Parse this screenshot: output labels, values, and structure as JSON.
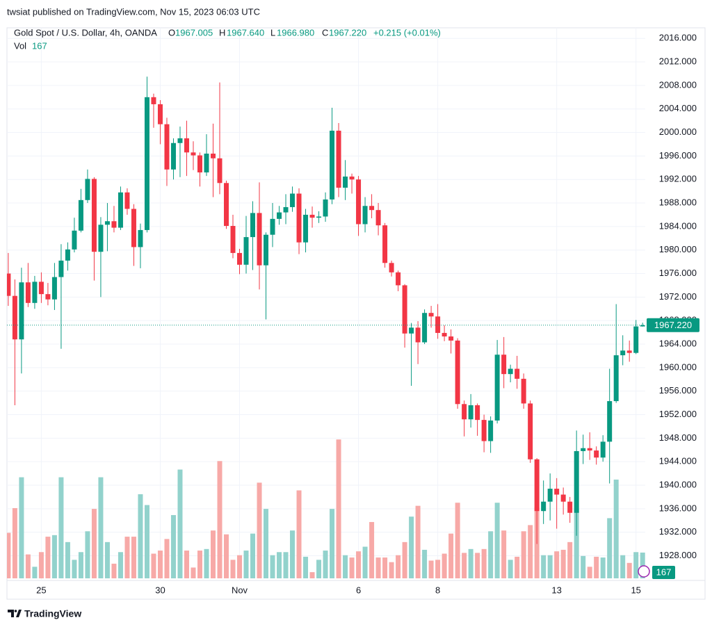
{
  "header": {
    "published": "twsiat published on TradingView.com, Nov 15, 2023 06:03 UTC"
  },
  "chart_data": {
    "type": "candlestick",
    "legend": {
      "open_label": "O",
      "open": "1967.005",
      "high_label": "H",
      "high": "1967.640",
      "low_label": "L",
      "low": "1966.980",
      "close_label": "C",
      "close": "1967.220",
      "change": "+0.215 (+0.01%)"
    },
    "up_color": "#089981",
    "down_color": "#f23645",
    "volume_up_color": "#92d2cc",
    "volume_down_color": "#f7a9a7",
    "series": [
      {
        "name": "Gold Spot / U.S. Dollar, 4h, OANDA",
        "open": [
          1976,
          1972.2,
          1964.8,
          1974.5,
          1971,
          1974.6,
          1972.5,
          1971.6,
          1975.4,
          1978.2,
          1980.1,
          1983.3,
          1988.5,
          1992.1,
          1979.7,
          1984.3,
          1984.9,
          1983.8,
          1989.8,
          1987,
          1980.5,
          1983.4,
          2006,
          2004.8,
          2001.4,
          1993.7,
          1998.2,
          1999,
          1996.6,
          1996.1,
          1993.2,
          1996.4,
          1995.6,
          1991.4,
          1984.1,
          1979.5,
          1977.5,
          1982.2,
          1986.3,
          1977.4,
          1982.6,
          1985.3,
          1986.4,
          1987.3,
          1989.6,
          1981.3,
          1986,
          1985.5,
          1985.7,
          1988.6,
          2000.3,
          1990.6,
          1992.5,
          1992,
          1984.4,
          1987.5,
          1986.8,
          1984.2,
          1977.8,
          1976.2,
          1974,
          1965.8,
          1966.8,
          1964.3,
          1969.3,
          1968.7,
          1965.9,
          1965.3,
          1964.6,
          1953.8,
          1951.2,
          1953.6,
          1951.1,
          1947.5,
          1951,
          1962.2,
          1958.9,
          1959.8,
          1958.1,
          1953.9,
          1944.4,
          1935.6,
          1937.2,
          1939.4,
          1938.4,
          1937.2,
          1935.3,
          1945.8,
          1946.3,
          1945.9,
          1944.7,
          1947.4,
          1954.3,
          1962.1,
          1962.9,
          1962.5,
          1967.005
        ],
        "high": [
          1979.5,
          1975,
          1977,
          1977.8,
          1975.6,
          1976.2,
          1974.4,
          1977.8,
          1981,
          1981.3,
          1985.5,
          1990.4,
          1993.7,
          1992.4,
          1985.6,
          1988,
          1987.5,
          1990.8,
          1990.5,
          1987.8,
          1984.5,
          2009.5,
          2006.6,
          2005.5,
          2002.5,
          1999,
          2001,
          2002,
          1998.5,
          1996.6,
          1999.7,
          2001.5,
          2008.5,
          1991.8,
          1986,
          1980.2,
          1985.8,
          1988.3,
          1991.5,
          1983,
          1988,
          1987.5,
          1989.5,
          1990.8,
          1990.5,
          1987,
          1987.4,
          1986.6,
          1989.8,
          2004.2,
          2001.6,
          1995.3,
          1993,
          1992.6,
          1989,
          1989.5,
          1988,
          1984.6,
          1978.2,
          1976.5,
          1974.2,
          1967.6,
          1967.9,
          1969.9,
          1970.5,
          1970.8,
          1967.2,
          1966.5,
          1965,
          1954.4,
          1955.5,
          1953.9,
          1952,
          1951.7,
          1964.7,
          1965.2,
          1960.5,
          1962,
          1959,
          1954.4,
          1944.6,
          1940.8,
          1942,
          1941.2,
          1939.6,
          1938,
          1949.3,
          1948.6,
          1949,
          1946.6,
          1948.5,
          1959.8,
          1970.8,
          1965.5,
          1964.6,
          1968.1,
          1967.64
        ],
        "low": [
          1970.5,
          1953.6,
          1959,
          1970.3,
          1970,
          1971,
          1970.6,
          1969.8,
          1963.2,
          1976.5,
          1979.6,
          1983,
          1988,
          1974.8,
          1972,
          1979.8,
          1983,
          1983.4,
          1986,
          1977.3,
          1976.9,
          1983,
          2000.8,
          1998,
          1990.9,
          1992,
          1992.4,
          1992.6,
          1993.6,
          1990.8,
          1992.6,
          1989,
          1989.5,
          1983.6,
          1978.6,
          1975.9,
          1976,
          1976.6,
          1973.3,
          1968.2,
          1980.5,
          1984.3,
          1984.4,
          1986.5,
          1979.3,
          1979.6,
          1983.8,
          1984.6,
          1984.8,
          1987.8,
          1989,
          1988.5,
          1989.6,
          1982.4,
          1983,
          1985.4,
          1982.5,
          1977,
          1975.5,
          1973,
          1963.4,
          1956.9,
          1960.6,
          1964,
          1966.8,
          1964.9,
          1964.5,
          1962.4,
          1953,
          1948.3,
          1949.8,
          1948.4,
          1945.6,
          1945.5,
          1950.5,
          1956.5,
          1957.5,
          1956.4,
          1953,
          1943.8,
          1930,
          1933.4,
          1934,
          1932.6,
          1935,
          1933.6,
          1931.4,
          1943.6,
          1944.3,
          1943.5,
          1944,
          1940.3,
          1954,
          1960.4,
          1961,
          1962.3,
          1966.98
        ],
        "close": [
          1972.2,
          1964.8,
          1974.5,
          1971,
          1974.6,
          1972.5,
          1971.6,
          1975.4,
          1978.2,
          1980.1,
          1983.3,
          1988.5,
          1992.1,
          1979.7,
          1984.3,
          1984.9,
          1983.8,
          1989.8,
          1987,
          1980.5,
          1983.4,
          2006,
          2004.8,
          2001.4,
          1993.7,
          1998.2,
          1999,
          1996.6,
          1996.1,
          1993.2,
          1996.4,
          1995.6,
          1991.4,
          1984.1,
          1979.5,
          1977.5,
          1982.2,
          1986.3,
          1977.4,
          1982.6,
          1985.3,
          1986.4,
          1987.3,
          1989.6,
          1981.3,
          1986,
          1985.5,
          1985.7,
          1988.6,
          2000.3,
          1990.6,
          1992.5,
          1992,
          1984.4,
          1987.5,
          1986.8,
          1984.2,
          1977.8,
          1976.2,
          1974,
          1965.8,
          1966.8,
          1964.3,
          1969.3,
          1968.7,
          1965.9,
          1965.3,
          1964.6,
          1953.8,
          1951.2,
          1953.6,
          1951.1,
          1947.5,
          1951,
          1962.2,
          1958.9,
          1959.8,
          1958.1,
          1953.9,
          1944.4,
          1935.6,
          1937.2,
          1939.4,
          1938.4,
          1937.2,
          1935.3,
          1945.8,
          1946.3,
          1945.9,
          1944.7,
          1947.4,
          1954.3,
          1962.1,
          1962.9,
          1962.5,
          1967.005,
          1967.22
        ]
      }
    ],
    "volume": {
      "name": "Vol",
      "ylim": [
        0,
        1000
      ],
      "values": [
        295,
        455,
        655,
        155,
        75,
        170,
        270,
        280,
        655,
        235,
        120,
        170,
        305,
        450,
        655,
        235,
        95,
        170,
        270,
        270,
        545,
        475,
        160,
        180,
        255,
        410,
        705,
        180,
        70,
        180,
        190,
        310,
        760,
        285,
        120,
        150,
        180,
        290,
        620,
        450,
        150,
        170,
        170,
        310,
        570,
        140,
        40,
        120,
        180,
        450,
        900,
        150,
        135,
        175,
        205,
        365,
        135,
        135,
        105,
        150,
        235,
        400,
        470,
        185,
        115,
        120,
        160,
        290,
        490,
        165,
        190,
        165,
        190,
        305,
        490,
        310,
        120,
        140,
        305,
        345,
        460,
        150,
        150,
        175,
        185,
        235,
        450,
        145,
        75,
        140,
        135,
        390,
        640,
        150,
        100,
        170,
        167
      ]
    },
    "current_price": {
      "value": 1967.22,
      "label": "1967.220"
    },
    "xlim": [
      -0.2,
      96.4
    ],
    "xticks": [
      {
        "value": 5,
        "label": "25"
      },
      {
        "value": 23,
        "label": "30"
      },
      {
        "value": 35,
        "label": "Nov"
      },
      {
        "value": 53,
        "label": "6"
      },
      {
        "value": 65,
        "label": "8"
      },
      {
        "value": 83,
        "label": "13"
      },
      {
        "value": 95,
        "label": "15"
      }
    ],
    "ylim": [
      1923.8,
      2017.8
    ],
    "yticks": [
      {
        "value": 1928,
        "label": "1928.000"
      },
      {
        "value": 1932,
        "label": "1932.000"
      },
      {
        "value": 1936,
        "label": "1936.000"
      },
      {
        "value": 1940,
        "label": "1940.000"
      },
      {
        "value": 1944,
        "label": "1944.000"
      },
      {
        "value": 1948,
        "label": "1948.000"
      },
      {
        "value": 1952,
        "label": "1952.000"
      },
      {
        "value": 1956,
        "label": "1956.000"
      },
      {
        "value": 1960,
        "label": "1960.000"
      },
      {
        "value": 1964,
        "label": "1964.000"
      },
      {
        "value": 1968,
        "label": "1968.000"
      },
      {
        "value": 1972,
        "label": "1972.000"
      },
      {
        "value": 1976,
        "label": "1976.000"
      },
      {
        "value": 1980,
        "label": "1980.000"
      },
      {
        "value": 1984,
        "label": "1984.000"
      },
      {
        "value": 1988,
        "label": "1988.000"
      },
      {
        "value": 1992,
        "label": "1992.000"
      },
      {
        "value": 1996,
        "label": "1996.000"
      },
      {
        "value": 2000,
        "label": "2000.000"
      },
      {
        "value": 2004,
        "label": "2004.000"
      },
      {
        "value": 2008,
        "label": "2008.000"
      },
      {
        "value": 2012,
        "label": "2012.000"
      },
      {
        "value": 2016,
        "label": "2016.000"
      }
    ],
    "grid": true
  },
  "footer": {
    "brand": "TradingView"
  }
}
